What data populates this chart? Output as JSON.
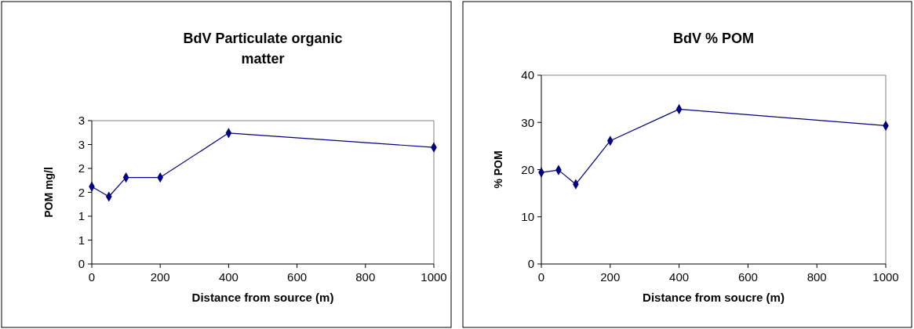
{
  "chart_data": [
    {
      "type": "line",
      "title": "BdV Particulate organic matter",
      "xlabel": "Distance from source (m)",
      "ylabel": "POM mg/l",
      "x": [
        0,
        50,
        100,
        200,
        400,
        1000
      ],
      "series": [
        {
          "color": "#000080",
          "values": [
            1.62,
            1.41,
            1.81,
            1.81,
            2.74,
            2.44
          ]
        }
      ],
      "xlim": [
        0,
        1000
      ],
      "xticks": [
        0,
        200,
        400,
        600,
        800,
        1000
      ],
      "ylim": [
        0,
        3
      ],
      "yticks": [
        0,
        {
          "value": 0.5,
          "label": "1"
        },
        {
          "value": 1,
          "label": "1"
        },
        {
          "value": 1.5,
          "label": "2"
        },
        {
          "value": 2,
          "label": "2"
        },
        {
          "value": 2.5,
          "label": "3"
        },
        {
          "value": 3,
          "label": "3"
        }
      ],
      "marker": "diamond",
      "grid": false
    },
    {
      "type": "line",
      "title": "BdV % POM",
      "xlabel": "Distance from soucre (m)",
      "ylabel": "% POM",
      "x": [
        0,
        50,
        100,
        200,
        400,
        1000
      ],
      "series": [
        {
          "color": "#000080",
          "values": [
            19.4,
            19.9,
            16.9,
            26.1,
            32.8,
            29.3
          ]
        }
      ],
      "xlim": [
        0,
        1000
      ],
      "xticks": [
        0,
        200,
        400,
        600,
        800,
        1000
      ],
      "ylim": [
        0,
        40
      ],
      "yticks": [
        0,
        10,
        20,
        30,
        40
      ],
      "marker": "diamond",
      "grid": false
    }
  ]
}
